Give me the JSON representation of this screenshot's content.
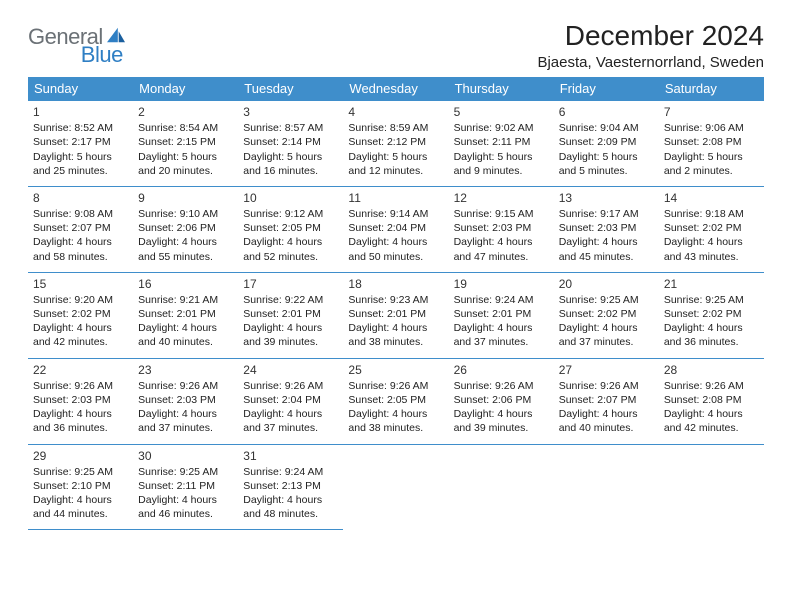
{
  "brand": {
    "part1": "General",
    "part2": "Blue",
    "color1": "#6b7176",
    "color2": "#2f7fc4"
  },
  "title": "December 2024",
  "location": "Bjaesta, Vaesternorrland, Sweden",
  "header_bg": "#3f8ecb",
  "day_headers": [
    "Sunday",
    "Monday",
    "Tuesday",
    "Wednesday",
    "Thursday",
    "Friday",
    "Saturday"
  ],
  "weeks": [
    [
      {
        "n": "1",
        "sr": "8:52 AM",
        "ss": "2:17 PM",
        "dl": "5 hours and 25 minutes."
      },
      {
        "n": "2",
        "sr": "8:54 AM",
        "ss": "2:15 PM",
        "dl": "5 hours and 20 minutes."
      },
      {
        "n": "3",
        "sr": "8:57 AM",
        "ss": "2:14 PM",
        "dl": "5 hours and 16 minutes."
      },
      {
        "n": "4",
        "sr": "8:59 AM",
        "ss": "2:12 PM",
        "dl": "5 hours and 12 minutes."
      },
      {
        "n": "5",
        "sr": "9:02 AM",
        "ss": "2:11 PM",
        "dl": "5 hours and 9 minutes."
      },
      {
        "n": "6",
        "sr": "9:04 AM",
        "ss": "2:09 PM",
        "dl": "5 hours and 5 minutes."
      },
      {
        "n": "7",
        "sr": "9:06 AM",
        "ss": "2:08 PM",
        "dl": "5 hours and 2 minutes."
      }
    ],
    [
      {
        "n": "8",
        "sr": "9:08 AM",
        "ss": "2:07 PM",
        "dl": "4 hours and 58 minutes."
      },
      {
        "n": "9",
        "sr": "9:10 AM",
        "ss": "2:06 PM",
        "dl": "4 hours and 55 minutes."
      },
      {
        "n": "10",
        "sr": "9:12 AM",
        "ss": "2:05 PM",
        "dl": "4 hours and 52 minutes."
      },
      {
        "n": "11",
        "sr": "9:14 AM",
        "ss": "2:04 PM",
        "dl": "4 hours and 50 minutes."
      },
      {
        "n": "12",
        "sr": "9:15 AM",
        "ss": "2:03 PM",
        "dl": "4 hours and 47 minutes."
      },
      {
        "n": "13",
        "sr": "9:17 AM",
        "ss": "2:03 PM",
        "dl": "4 hours and 45 minutes."
      },
      {
        "n": "14",
        "sr": "9:18 AM",
        "ss": "2:02 PM",
        "dl": "4 hours and 43 minutes."
      }
    ],
    [
      {
        "n": "15",
        "sr": "9:20 AM",
        "ss": "2:02 PM",
        "dl": "4 hours and 42 minutes."
      },
      {
        "n": "16",
        "sr": "9:21 AM",
        "ss": "2:01 PM",
        "dl": "4 hours and 40 minutes."
      },
      {
        "n": "17",
        "sr": "9:22 AM",
        "ss": "2:01 PM",
        "dl": "4 hours and 39 minutes."
      },
      {
        "n": "18",
        "sr": "9:23 AM",
        "ss": "2:01 PM",
        "dl": "4 hours and 38 minutes."
      },
      {
        "n": "19",
        "sr": "9:24 AM",
        "ss": "2:01 PM",
        "dl": "4 hours and 37 minutes."
      },
      {
        "n": "20",
        "sr": "9:25 AM",
        "ss": "2:02 PM",
        "dl": "4 hours and 37 minutes."
      },
      {
        "n": "21",
        "sr": "9:25 AM",
        "ss": "2:02 PM",
        "dl": "4 hours and 36 minutes."
      }
    ],
    [
      {
        "n": "22",
        "sr": "9:26 AM",
        "ss": "2:03 PM",
        "dl": "4 hours and 36 minutes."
      },
      {
        "n": "23",
        "sr": "9:26 AM",
        "ss": "2:03 PM",
        "dl": "4 hours and 37 minutes."
      },
      {
        "n": "24",
        "sr": "9:26 AM",
        "ss": "2:04 PM",
        "dl": "4 hours and 37 minutes."
      },
      {
        "n": "25",
        "sr": "9:26 AM",
        "ss": "2:05 PM",
        "dl": "4 hours and 38 minutes."
      },
      {
        "n": "26",
        "sr": "9:26 AM",
        "ss": "2:06 PM",
        "dl": "4 hours and 39 minutes."
      },
      {
        "n": "27",
        "sr": "9:26 AM",
        "ss": "2:07 PM",
        "dl": "4 hours and 40 minutes."
      },
      {
        "n": "28",
        "sr": "9:26 AM",
        "ss": "2:08 PM",
        "dl": "4 hours and 42 minutes."
      }
    ],
    [
      {
        "n": "29",
        "sr": "9:25 AM",
        "ss": "2:10 PM",
        "dl": "4 hours and 44 minutes."
      },
      {
        "n": "30",
        "sr": "9:25 AM",
        "ss": "2:11 PM",
        "dl": "4 hours and 46 minutes."
      },
      {
        "n": "31",
        "sr": "9:24 AM",
        "ss": "2:13 PM",
        "dl": "4 hours and 48 minutes."
      },
      null,
      null,
      null,
      null
    ]
  ],
  "labels": {
    "sunrise": "Sunrise:",
    "sunset": "Sunset:",
    "daylight": "Daylight:"
  }
}
